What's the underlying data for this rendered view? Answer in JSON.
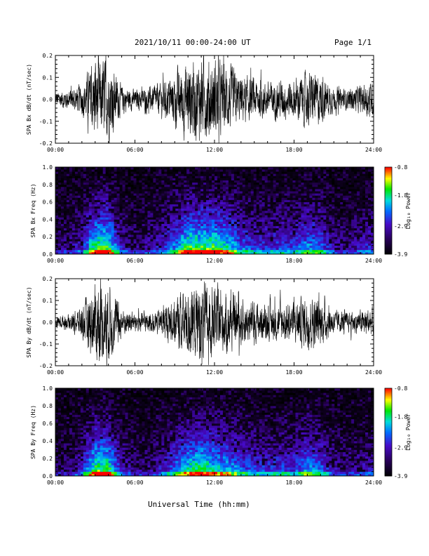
{
  "header": {
    "title": "2021/10/11  00:00-24:00 UT",
    "page": "Page 1/1"
  },
  "x_axis_title": "Universal Time (hh:mm)",
  "colorbar_label": "Log₁₀ Power",
  "chart_data": [
    {
      "type": "line",
      "ylabel": "SPA Bx dB/dt (nT/sec)",
      "xlim": [
        "00:00",
        "24:00"
      ],
      "ylim": [
        -0.2,
        0.2
      ],
      "xticks": [
        "00:00",
        "06:00",
        "12:00",
        "18:00",
        "24:00"
      ],
      "yticks": [
        "-0.2",
        "-0.1",
        "0.0",
        "0.1",
        "0.2"
      ],
      "envelope": [
        {
          "x": "00:00",
          "amp": 0.04
        },
        {
          "x": "01:00",
          "amp": 0.05
        },
        {
          "x": "02:00",
          "amp": 0.08
        },
        {
          "x": "03:00",
          "amp": 0.2
        },
        {
          "x": "04:00",
          "amp": 0.2
        },
        {
          "x": "05:00",
          "amp": 0.07
        },
        {
          "x": "06:00",
          "amp": 0.05
        },
        {
          "x": "07:00",
          "amp": 0.06
        },
        {
          "x": "08:00",
          "amp": 0.08
        },
        {
          "x": "09:00",
          "amp": 0.13
        },
        {
          "x": "10:00",
          "amp": 0.2
        },
        {
          "x": "11:00",
          "amp": 0.2
        },
        {
          "x": "12:00",
          "amp": 0.2
        },
        {
          "x": "13:00",
          "amp": 0.17
        },
        {
          "x": "14:00",
          "amp": 0.12
        },
        {
          "x": "15:00",
          "amp": 0.1
        },
        {
          "x": "16:00",
          "amp": 0.09
        },
        {
          "x": "17:00",
          "amp": 0.1
        },
        {
          "x": "18:00",
          "amp": 0.1
        },
        {
          "x": "19:00",
          "amp": 0.14
        },
        {
          "x": "20:00",
          "amp": 0.12
        },
        {
          "x": "21:00",
          "amp": 0.06
        },
        {
          "x": "22:00",
          "amp": 0.05
        },
        {
          "x": "23:00",
          "amp": 0.07
        },
        {
          "x": "24:00",
          "amp": 0.09
        }
      ]
    },
    {
      "type": "heatmap",
      "ylabel": "SPA Bx Freq (Hz)",
      "xlim": [
        "00:00",
        "24:00"
      ],
      "ylim": [
        0.0,
        1.0
      ],
      "xticks": [
        "00:00",
        "06:00",
        "12:00",
        "18:00",
        "24:00"
      ],
      "yticks": [
        "0.0",
        "0.2",
        "0.4",
        "0.6",
        "0.8",
        "1.0"
      ],
      "colorbar": {
        "label": "Log₁₀ Power",
        "range": [
          -3.9,
          -0.8
        ],
        "ticks": [
          "-3.9",
          "-2.9",
          "-1.8",
          "-0.8"
        ]
      }
    },
    {
      "type": "line",
      "ylabel": "SPA By dB/dt (nT/sec)",
      "xlim": [
        "00:00",
        "24:00"
      ],
      "ylim": [
        -0.2,
        0.2
      ],
      "xticks": [
        "00:00",
        "06:00",
        "12:00",
        "18:00",
        "24:00"
      ],
      "yticks": [
        "-0.2",
        "-0.1",
        "0.0",
        "0.1",
        "0.2"
      ],
      "envelope": [
        {
          "x": "00:00",
          "amp": 0.03
        },
        {
          "x": "01:00",
          "amp": 0.04
        },
        {
          "x": "02:00",
          "amp": 0.08
        },
        {
          "x": "03:00",
          "amp": 0.2
        },
        {
          "x": "04:00",
          "amp": 0.2
        },
        {
          "x": "05:00",
          "amp": 0.07
        },
        {
          "x": "06:00",
          "amp": 0.05
        },
        {
          "x": "07:00",
          "amp": 0.05
        },
        {
          "x": "08:00",
          "amp": 0.07
        },
        {
          "x": "09:00",
          "amp": 0.12
        },
        {
          "x": "10:00",
          "amp": 0.18
        },
        {
          "x": "11:00",
          "amp": 0.2
        },
        {
          "x": "12:00",
          "amp": 0.17
        },
        {
          "x": "13:00",
          "amp": 0.15
        },
        {
          "x": "14:00",
          "amp": 0.12
        },
        {
          "x": "15:00",
          "amp": 0.1
        },
        {
          "x": "16:00",
          "amp": 0.09
        },
        {
          "x": "17:00",
          "amp": 0.1
        },
        {
          "x": "18:00",
          "amp": 0.1
        },
        {
          "x": "19:00",
          "amp": 0.14
        },
        {
          "x": "20:00",
          "amp": 0.12
        },
        {
          "x": "21:00",
          "amp": 0.06
        },
        {
          "x": "22:00",
          "amp": 0.05
        },
        {
          "x": "23:00",
          "amp": 0.06
        },
        {
          "x": "24:00",
          "amp": 0.08
        }
      ]
    },
    {
      "type": "heatmap",
      "ylabel": "SPA By Freq (Hz)",
      "xlim": [
        "00:00",
        "24:00"
      ],
      "ylim": [
        0.0,
        1.0
      ],
      "xticks": [
        "00:00",
        "06:00",
        "12:00",
        "18:00",
        "24:00"
      ],
      "yticks": [
        "0.0",
        "0.2",
        "0.4",
        "0.6",
        "0.8",
        "1.0"
      ],
      "colorbar": {
        "label": "Log₁₀ Power",
        "range": [
          -3.9,
          -0.8
        ],
        "ticks": [
          "-3.9",
          "-2.9",
          "-1.8",
          "-0.8"
        ]
      }
    }
  ]
}
